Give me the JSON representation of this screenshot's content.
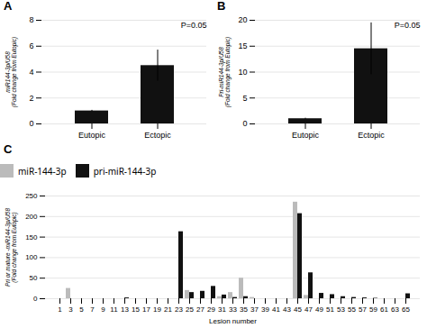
{
  "chart_data": [
    {
      "type": "bar",
      "title": "A",
      "categories": [
        "Eutopic",
        "Ectopic"
      ],
      "values": [
        1.0,
        4.5
      ],
      "errors": [
        0.05,
        1.2
      ],
      "ylabel": "miR144-3p/U58\n(Fold change from Eutopic)",
      "ylim": [
        0,
        8
      ],
      "yticks": [
        0,
        2,
        4,
        6,
        8
      ],
      "annotation": "P=0.05",
      "color": "#111111",
      "grid": true
    },
    {
      "type": "bar",
      "title": "B",
      "categories": [
        "Eutopic",
        "Ectopic"
      ],
      "values": [
        1.0,
        14.5
      ],
      "errors": [
        0.1,
        5.0
      ],
      "ylabel": "Pri-miR144-3p/U58\n(Fold change from Eutopic)",
      "ylim": [
        0,
        20
      ],
      "yticks": [
        0,
        5,
        10,
        15,
        20
      ],
      "annotation": "P=0.05",
      "color": "#111111",
      "grid": true
    },
    {
      "type": "bar",
      "title": "C",
      "xlabel": "Lesion number",
      "ylabel": "Pri or mature -miR144-3p/U58\n(Fold change from Eutopic)",
      "categories": [
        1,
        3,
        5,
        7,
        9,
        11,
        13,
        15,
        17,
        19,
        21,
        23,
        25,
        27,
        29,
        31,
        33,
        35,
        37,
        39,
        41,
        43,
        45,
        47,
        49,
        51,
        53,
        55,
        57,
        59,
        61,
        63,
        65
      ],
      "series": [
        {
          "name": "miR-144-3p",
          "color": "#bbbbbb",
          "values": [
            0,
            25,
            0,
            0,
            0,
            0,
            0,
            0,
            0,
            0,
            0,
            0,
            20,
            0,
            0,
            5,
            15,
            50,
            3,
            0,
            0,
            0,
            235,
            8,
            0,
            0,
            0,
            0,
            0,
            0,
            0,
            0,
            0
          ]
        },
        {
          "name": "pri-miR-144-3p",
          "color": "#111111",
          "values": [
            0,
            0,
            0,
            0,
            0,
            0,
            2,
            0,
            0,
            0,
            0,
            163,
            15,
            18,
            30,
            9,
            3,
            5,
            0,
            0,
            0,
            0,
            207,
            63,
            13,
            10,
            5,
            3,
            2,
            1,
            0,
            0,
            12
          ]
        }
      ],
      "ylim": [
        0,
        250
      ],
      "yticks": [
        0,
        50,
        100,
        150,
        200,
        250
      ],
      "legend": "top",
      "grid": true
    }
  ]
}
